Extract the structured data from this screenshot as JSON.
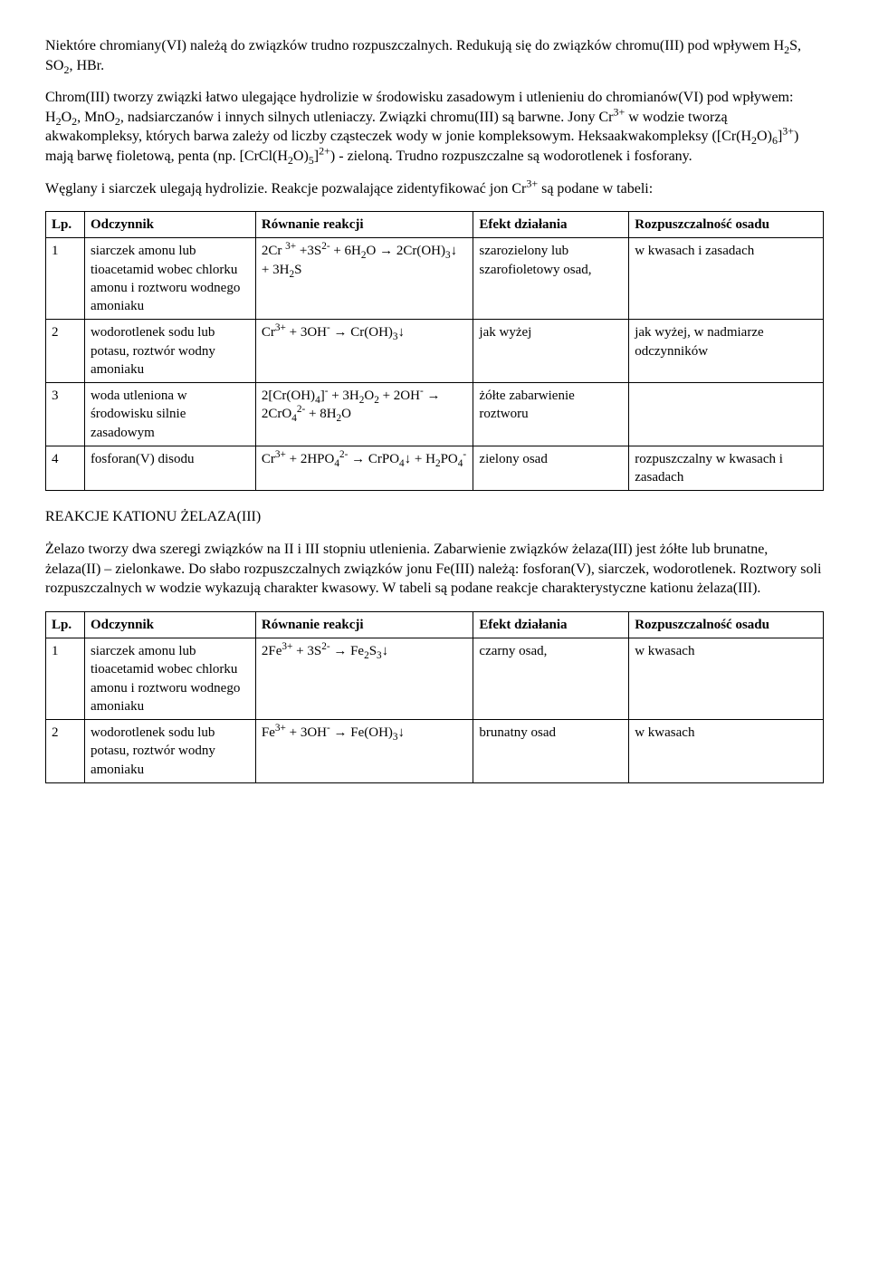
{
  "intro": {
    "p1_html": "Niektóre chromiany(VI) należą do związków trudno rozpuszczalnych. Redukują się do związków chromu(III) pod wpływem H<sub>2</sub>S, SO<sub>2</sub>, HBr.",
    "p2_html": "Chrom(III) tworzy związki łatwo ulegające hydrolizie w środowisku zasadowym i utlenieniu do chromianów(VI) pod wpływem: H<sub>2</sub>O<sub>2</sub>, MnO<sub>2</sub>, nadsiarczanów i innych silnych utleniaczy. Związki chromu(III) są barwne. Jony Cr<sup>3+</sup> w wodzie tworzą akwakompleksy, których barwa zależy od liczby cząsteczek wody w jonie kompleksowym. Heksaakwakompleksy ([Cr(H<sub>2</sub>O)<sub>6</sub>]<sup>3+</sup>) mają barwę fioletową, penta (np. [CrCl(H<sub>2</sub>O)<sub>5</sub>]<sup>2+</sup>) - zieloną. Trudno rozpuszczalne są wodorotlenek i fosforany.",
    "p3_html": "Węglany i siarczek ulegają hydrolizie. Reakcje pozwalające zidentyfikować jon Cr<sup>3+</sup> są podane w tabeli:"
  },
  "table_headers": {
    "lp": "Lp.",
    "odczynnik": "Odczynnik",
    "rownanie": "Równanie reakcji",
    "efekt": "Efekt działania",
    "rozp": "Rozpuszczalność osadu"
  },
  "table1": {
    "rows": [
      {
        "lp": "1",
        "odczynnik_html": "siarczek amonu lub tioacetamid wobec chlorku amonu i roztworu wodnego amoniaku",
        "rownanie_html": "2Cr <sup>3+</sup> +3S<sup>2-</sup> + 6H<sub>2</sub>O → 2Cr(OH)<sub>3</sub>↓ + 3H<sub>2</sub>S",
        "efekt_html": "szarozielony lub szarofioletowy osad,",
        "rozp_html": "w kwasach i zasadach"
      },
      {
        "lp": "2",
        "odczynnik_html": "wodorotlenek sodu lub potasu, roztwór wodny amoniaku",
        "rownanie_html": "Cr<sup>3+</sup> + 3OH<sup>-</sup> → Cr(OH)<sub>3</sub>↓",
        "efekt_html": "jak wyżej",
        "rozp_html": "jak wyżej, w nadmiarze odczynników"
      },
      {
        "lp": "3",
        "odczynnik_html": "woda utleniona w środowisku silnie zasadowym",
        "rownanie_html": "2[Cr(OH)<sub>4</sub>]<sup>-</sup> + 3H<sub>2</sub>O<sub>2</sub> + 2OH<sup>-</sup> → 2CrO<sub>4</sub><sup>2-</sup> + 8H<sub>2</sub>O",
        "efekt_html": "żółte zabarwienie roztworu",
        "rozp_html": ""
      },
      {
        "lp": "4",
        "odczynnik_html": "fosforan(V) disodu",
        "rownanie_html": "Cr<sup>3+</sup> + 2HPO<sub>4</sub><sup>2-</sup> → CrPO<sub>4</sub>↓ + H<sub>2</sub>PO<sub>4</sub><sup>-</sup>",
        "efekt_html": "zielony osad",
        "rozp_html": "rozpuszczalny w kwasach i zasadach"
      }
    ]
  },
  "section2": {
    "title": "REAKCJE KATIONU ŻELAZA(III)",
    "p1_html": "Żelazo tworzy dwa szeregi związków na II i III stopniu utlenienia. Zabarwienie związków żelaza(III) jest żółte lub brunatne, żelaza(II) – zielonkawe. Do słabo rozpuszczalnych związków jonu Fe(III) należą: fosforan(V), siarczek, wodorotlenek. Roztwory soli rozpuszczalnych w wodzie wykazują charakter kwasowy. W tabeli są podane reakcje charakterystyczne kationu żelaza(III)."
  },
  "table2": {
    "rows": [
      {
        "lp": "1",
        "odczynnik_html": "siarczek amonu lub tioacetamid wobec chlorku amonu i roztworu wodnego amoniaku",
        "rownanie_html": "2Fe<sup>3+</sup> + 3S<sup>2-</sup> → Fe<sub>2</sub>S<sub>3</sub>↓",
        "efekt_html": "czarny osad,",
        "rozp_html": "w kwasach"
      },
      {
        "lp": "2",
        "odczynnik_html": "wodorotlenek sodu lub potasu, roztwór wodny amoniaku",
        "rownanie_html": "Fe<sup>3+</sup> + 3OH<sup>-</sup> → Fe(OH)<sub>3</sub>↓",
        "efekt_html": "brunatny osad",
        "rozp_html": "w kwasach"
      }
    ]
  }
}
